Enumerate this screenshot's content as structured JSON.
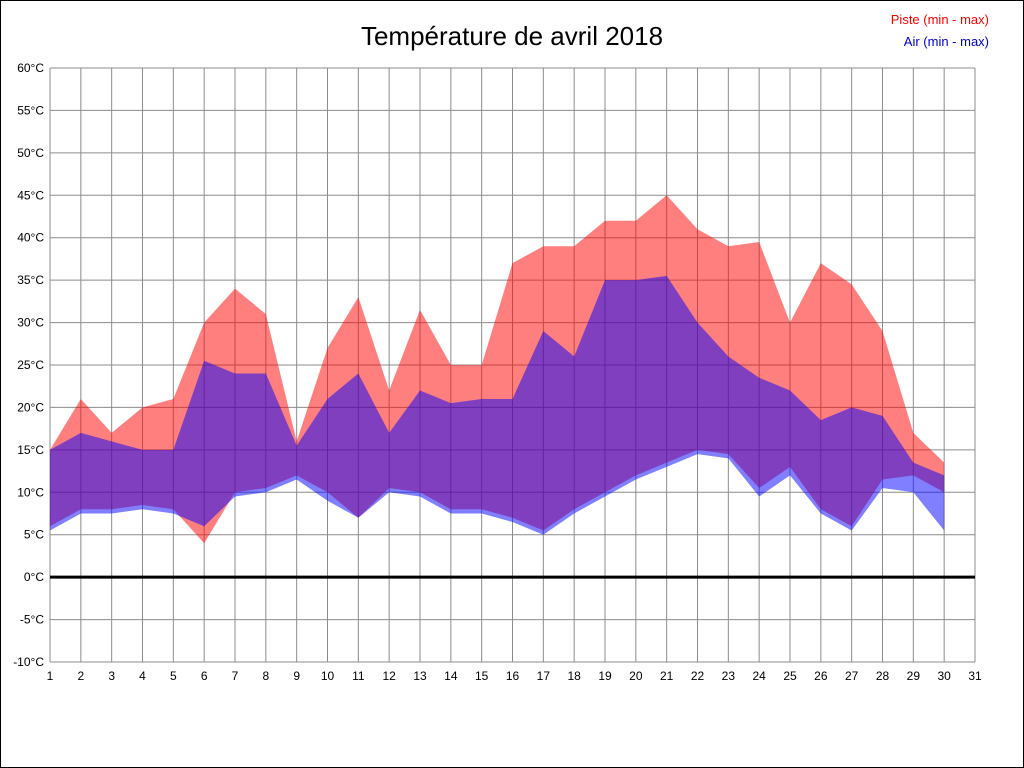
{
  "page": {
    "title": "Température de avril 2018"
  },
  "legend": {
    "piste_label": "Piste (min - max)",
    "air_label": "Air (min - max)",
    "piste_color": "#ff0000",
    "air_color": "#0000cc"
  },
  "chart_data": {
    "type": "area",
    "title": "Température de avril 2018",
    "xlabel": "",
    "ylabel": "",
    "xlim": [
      1,
      31
    ],
    "ylim": [
      -10,
      60
    ],
    "grid": true,
    "grid_color": "#8c8c8c",
    "zero_line_color": "#000000",
    "legend_position": "top-right",
    "x_tick_values": [
      1,
      2,
      3,
      4,
      5,
      6,
      7,
      8,
      9,
      10,
      11,
      12,
      13,
      14,
      15,
      16,
      17,
      18,
      19,
      20,
      21,
      22,
      23,
      24,
      25,
      26,
      27,
      28,
      29,
      30,
      31
    ],
    "x_tick_labels": [
      "1",
      "2",
      "3",
      "4",
      "5",
      "6",
      "7",
      "8",
      "9",
      "10",
      "11",
      "12",
      "13",
      "14",
      "15",
      "16",
      "17",
      "18",
      "19",
      "20",
      "21",
      "22",
      "23",
      "24",
      "25",
      "26",
      "27",
      "28",
      "29",
      "30",
      "31"
    ],
    "y_tick_values": [
      60,
      55,
      50,
      45,
      40,
      35,
      30,
      25,
      20,
      15,
      10,
      5,
      0,
      -5,
      -10
    ],
    "y_tick_labels": [
      "60°C",
      "55°C",
      "50°C",
      "45°C",
      "40°C",
      "35°C",
      "30°C",
      "25°C",
      "20°C",
      "15°C",
      "10°C",
      "5°C",
      "0°C",
      "-5°C",
      "-10°C"
    ],
    "days": [
      1,
      2,
      3,
      4,
      5,
      6,
      7,
      8,
      9,
      10,
      11,
      12,
      13,
      14,
      15,
      16,
      17,
      18,
      19,
      20,
      21,
      22,
      23,
      24,
      25,
      26,
      27,
      28,
      29,
      30
    ],
    "series": [
      {
        "name": "Piste (min - max)",
        "legend_color": "#ff0000",
        "fill": "rgba(255,0,0,0.5)",
        "max": [
          15,
          21,
          17,
          20,
          21,
          30,
          34,
          31,
          16,
          27,
          33,
          22,
          31.5,
          25,
          25,
          37,
          39,
          39,
          42,
          42,
          45,
          41,
          39,
          39.5,
          30,
          37,
          34.5,
          29,
          17,
          13.5
        ],
        "min": [
          6,
          8,
          8,
          8.5,
          8,
          4,
          10,
          10.5,
          12,
          10,
          7,
          10.5,
          10,
          8,
          8,
          7,
          5.5,
          8,
          10,
          12,
          13.5,
          15,
          14.5,
          10.5,
          13,
          8,
          6,
          11.5,
          12,
          10
        ]
      },
      {
        "name": "Air (min - max)",
        "legend_color": "#0000cc",
        "fill": "rgba(0,0,255,0.5)",
        "max": [
          15,
          17,
          16,
          15,
          15,
          25.5,
          24,
          24,
          15.5,
          21,
          24,
          17,
          22,
          20.5,
          21,
          21,
          29,
          26,
          35,
          35,
          35.5,
          30,
          26,
          23.5,
          22,
          18.5,
          20,
          19,
          13.5,
          12
        ],
        "min": [
          5.5,
          7.5,
          7.5,
          8,
          7.5,
          6,
          9.5,
          10,
          11.5,
          9,
          7,
          10,
          9.5,
          7.5,
          7.5,
          6.5,
          5,
          7.5,
          9.5,
          11.5,
          13,
          14.5,
          14,
          9.5,
          12,
          7.5,
          5.5,
          10.5,
          10,
          5.5
        ]
      }
    ]
  }
}
